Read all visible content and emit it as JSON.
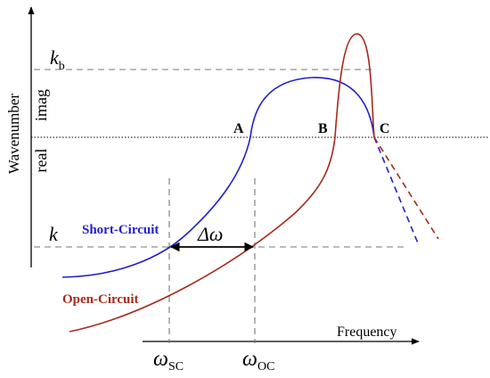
{
  "axes": {
    "x_label": "Frequency",
    "y_label": "Wavenumber",
    "y_upper_region": "imag",
    "y_lower_region": "real"
  },
  "level_labels": {
    "kb_main": "k",
    "kb_sub": "b",
    "k": "k"
  },
  "frequency_labels": {
    "sc_main": "ω",
    "sc_sub": "SC",
    "oc_main": "ω",
    "oc_sub": "OC"
  },
  "delta_label": "Δω",
  "points": {
    "a": "A",
    "b": "B",
    "c": "C"
  },
  "curves": {
    "short_circuit": {
      "label": "Short-Circuit",
      "color": "#1f1fd0"
    },
    "open_circuit": {
      "label": "Open-Circuit",
      "color": "#a52a1a"
    }
  },
  "colors": {
    "axis": "#000000",
    "guide": "#777777"
  }
}
